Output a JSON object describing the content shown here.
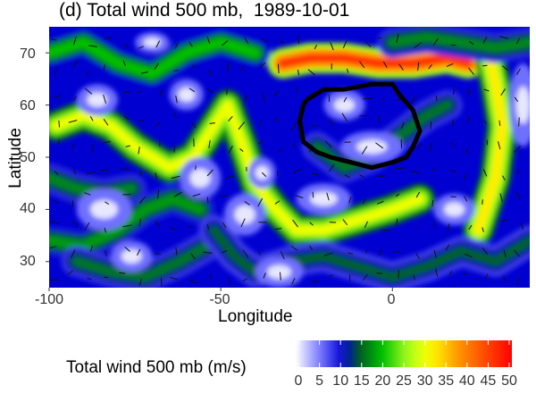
{
  "chart_data": {
    "type": "heatmap",
    "title": "(d) Total wind 500 mb,  1989-10-01",
    "xlabel": "Longitude",
    "ylabel": "Latitude",
    "xlim": [
      -100,
      40
    ],
    "ylim": [
      25,
      75
    ],
    "x_ticks": [
      -100,
      -50,
      0
    ],
    "y_ticks": [
      30,
      40,
      50,
      60,
      70
    ],
    "x_tick_labels": [
      "-100",
      "-50",
      "0"
    ],
    "y_tick_labels": [
      "30",
      "40",
      "50",
      "60",
      "70"
    ],
    "colorbar": {
      "title": "Total wind 500 mb (m/s)",
      "range": [
        0,
        50
      ],
      "tick_labels": [
        "0",
        "5",
        "10",
        "15",
        "20",
        "25",
        "30",
        "35",
        "40",
        "45",
        "50"
      ],
      "colors": [
        "#ffffff",
        "#4040ff",
        "#0000cc",
        "#00a000",
        "#a0ff20",
        "#ffff00",
        "#ff8000",
        "#ff0000"
      ],
      "placement": "bottom"
    },
    "jets": [
      {
        "points": [
          [
            -98,
            56
          ],
          [
            -90,
            58
          ],
          [
            -82,
            56
          ],
          [
            -75,
            52
          ],
          [
            -65,
            48
          ],
          [
            -58,
            50
          ],
          [
            -52,
            56
          ],
          [
            -48,
            60
          ],
          [
            -44,
            53
          ],
          [
            -40,
            45
          ],
          [
            -34,
            40
          ],
          [
            -28,
            36
          ],
          [
            -20,
            36
          ],
          [
            -10,
            38
          ],
          [
            0,
            40
          ],
          [
            8,
            42
          ]
        ],
        "speed": 30
      },
      {
        "points": [
          [
            -32,
            68
          ],
          [
            -24,
            69
          ],
          [
            -14,
            69
          ],
          [
            -4,
            68
          ],
          [
            6,
            68
          ],
          [
            16,
            69
          ],
          [
            22,
            68
          ]
        ],
        "speed": 46
      },
      {
        "points": [
          [
            -22,
            52
          ],
          [
            -14,
            48
          ],
          [
            -6,
            50
          ],
          [
            2,
            54
          ],
          [
            10,
            58
          ],
          [
            16,
            60
          ]
        ],
        "speed": 16
      },
      {
        "points": [
          [
            25,
            36
          ],
          [
            30,
            46
          ],
          [
            32,
            56
          ],
          [
            30,
            64
          ],
          [
            28,
            70
          ]
        ],
        "speed": 32
      },
      {
        "points": [
          [
            -100,
            34
          ],
          [
            -90,
            33
          ],
          [
            -80,
            36
          ],
          [
            -72,
            40
          ],
          [
            -64,
            42
          ],
          [
            -56,
            40
          ]
        ],
        "speed": 18
      },
      {
        "points": [
          [
            -100,
            70
          ],
          [
            -90,
            72
          ],
          [
            -80,
            68
          ],
          [
            -70,
            66
          ],
          [
            -60,
            70
          ],
          [
            -50,
            72
          ],
          [
            -40,
            70
          ]
        ],
        "speed": 20
      },
      {
        "points": [
          [
            -92,
            30
          ],
          [
            -82,
            28
          ],
          [
            -72,
            27
          ],
          [
            -62,
            30
          ],
          [
            -54,
            33
          ]
        ],
        "speed": 16
      },
      {
        "points": [
          [
            -52,
            36
          ],
          [
            -46,
            31
          ],
          [
            -40,
            28
          ],
          [
            -30,
            30
          ],
          [
            -20,
            31
          ],
          [
            -10,
            29
          ],
          [
            0,
            27
          ],
          [
            10,
            29
          ],
          [
            20,
            32
          ],
          [
            30,
            30
          ],
          [
            40,
            34
          ]
        ],
        "speed": 15
      },
      {
        "points": [
          [
            -100,
            46
          ],
          [
            -92,
            44
          ],
          [
            -84,
            43
          ],
          [
            -76,
            44
          ]
        ],
        "speed": 17
      },
      {
        "points": [
          [
            0,
            72
          ],
          [
            10,
            73
          ],
          [
            20,
            72
          ],
          [
            30,
            71
          ],
          [
            40,
            72
          ]
        ],
        "speed": 17
      }
    ],
    "calm_spots": [
      [
        -86,
        61,
        6,
        3
      ],
      [
        -60,
        62,
        5,
        3
      ],
      [
        -56,
        46,
        6,
        4
      ],
      [
        -84,
        40,
        8,
        4
      ],
      [
        -43,
        39,
        6,
        4
      ],
      [
        -38,
        47,
        4,
        3
      ],
      [
        -76,
        31,
        6,
        3
      ],
      [
        -33,
        28,
        7,
        3
      ],
      [
        -14,
        60,
        6,
        3
      ],
      [
        -6,
        52,
        9,
        3
      ],
      [
        -70,
        72,
        5,
        2
      ],
      [
        38,
        60,
        4,
        8
      ],
      [
        18,
        40,
        6,
        3
      ],
      [
        -20,
        42,
        8,
        3
      ]
    ],
    "outline": [
      [
        -25,
        61
      ],
      [
        -20,
        63
      ],
      [
        -14,
        63
      ],
      [
        -6,
        64
      ],
      [
        0,
        64
      ],
      [
        2,
        62
      ],
      [
        6,
        59
      ],
      [
        8,
        55
      ],
      [
        6,
        52
      ],
      [
        4,
        50
      ],
      [
        0,
        49
      ],
      [
        -6,
        48
      ],
      [
        -12,
        49
      ],
      [
        -18,
        50
      ],
      [
        -22,
        51
      ],
      [
        -26,
        53
      ],
      [
        -27,
        57
      ],
      [
        -26,
        60
      ]
    ]
  }
}
